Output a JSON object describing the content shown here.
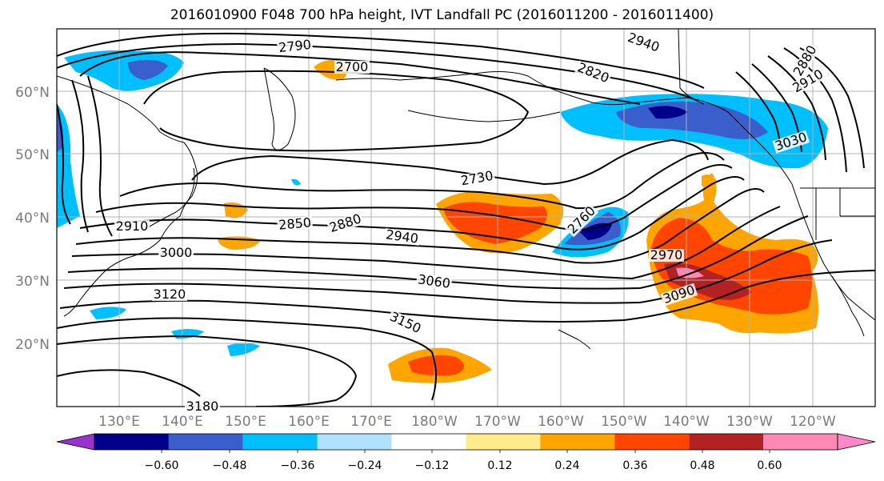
{
  "title": "2016010900 F048 700 hPa height, IVT Landfall PC (2016011200 - 2016011400)",
  "map": {
    "lat_labels": [
      "60°N",
      "50°N",
      "40°N",
      "30°N",
      "20°N"
    ],
    "lon_labels": [
      "130°E",
      "140°E",
      "150°E",
      "160°E",
      "170°E",
      "180°W",
      "170°W",
      "160°W",
      "150°W",
      "140°W",
      "130°W",
      "120°W"
    ],
    "contour_labels": [
      "2790",
      "2700",
      "2940",
      "2820",
      "2880",
      "2910",
      "3030",
      "2730",
      "2760",
      "2910",
      "2850",
      "2880",
      "2940",
      "3000",
      "2970",
      "3060",
      "3090",
      "3120",
      "3150",
      "3180"
    ]
  },
  "colorbar": {
    "colors": [
      "#9932cc",
      "#00008b",
      "#3a5fcd",
      "#00bfff",
      "#b0e2ff",
      "#ffffff",
      "#ffeb8c",
      "#ffa500",
      "#ff4500",
      "#b22222",
      "#ff88b4",
      "#ff88c8"
    ],
    "tick_labels": [
      "−0.60",
      "−0.48",
      "−0.36",
      "−0.24",
      "−0.12",
      "0.12",
      "0.24",
      "0.36",
      "0.48",
      "0.60"
    ]
  },
  "colors": {
    "grid": "#b0b0b0",
    "contour": "#000000",
    "coast": "#000000"
  }
}
